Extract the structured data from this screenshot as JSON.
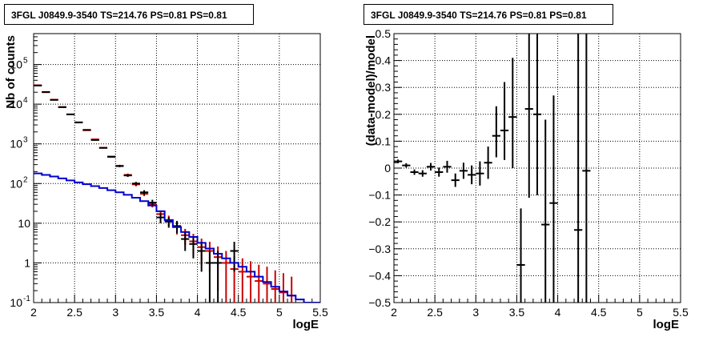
{
  "chart_data": [
    {
      "type": "histogram",
      "title": "3FGL J0849.9-3540 TS=214.76 PS=0.81 PS=0.81",
      "xlabel": "logE",
      "ylabel": "Nb of counts",
      "xlim": [
        2,
        5.5
      ],
      "ylim": [
        0.1,
        600000
      ],
      "yscale": "log",
      "grid": true,
      "x_ticks": [
        "2",
        "2.5",
        "3",
        "3.5",
        "4",
        "4.5",
        "5",
        "5.5"
      ],
      "y_ticks": [
        "10^-1",
        "1",
        "10",
        "10^2",
        "10^3",
        "10^4",
        "10^5"
      ],
      "series": [
        {
          "color": "#cc0000",
          "style": "points_with_errors",
          "points": [
            {
              "x": 2.05,
              "y": 30000,
              "lo": 29800,
              "hi": 30200
            },
            {
              "x": 2.15,
              "y": 20000,
              "lo": 19850,
              "hi": 20150
            },
            {
              "x": 2.25,
              "y": 13000,
              "lo": 12880,
              "hi": 13120
            },
            {
              "x": 2.35,
              "y": 8500,
              "lo": 8400,
              "hi": 8600
            },
            {
              "x": 2.45,
              "y": 5500,
              "lo": 5420,
              "hi": 5580
            },
            {
              "x": 2.55,
              "y": 3500,
              "lo": 3440,
              "hi": 3560
            },
            {
              "x": 2.65,
              "y": 2200,
              "lo": 2150,
              "hi": 2250
            },
            {
              "x": 2.75,
              "y": 1300,
              "lo": 1260,
              "hi": 1340
            },
            {
              "x": 2.85,
              "y": 800,
              "lo": 770,
              "hi": 830
            },
            {
              "x": 2.95,
              "y": 480,
              "lo": 458,
              "hi": 502
            },
            {
              "x": 3.05,
              "y": 280,
              "lo": 263,
              "hi": 297
            },
            {
              "x": 3.15,
              "y": 165,
              "lo": 152,
              "hi": 178
            },
            {
              "x": 3.25,
              "y": 95,
              "lo": 85,
              "hi": 105
            },
            {
              "x": 3.35,
              "y": 55,
              "lo": 48,
              "hi": 62
            },
            {
              "x": 3.45,
              "y": 30,
              "lo": 25,
              "hi": 35
            },
            {
              "x": 3.55,
              "y": 17,
              "lo": 13,
              "hi": 21
            },
            {
              "x": 3.65,
              "y": 12,
              "lo": 8.5,
              "hi": 15.5
            },
            {
              "x": 3.75,
              "y": 8,
              "lo": 5.2,
              "hi": 10.8
            },
            {
              "x": 3.85,
              "y": 5,
              "lo": 2.8,
              "hi": 7.2
            },
            {
              "x": 3.95,
              "y": 3.5,
              "lo": 1.6,
              "hi": 5.4
            },
            {
              "x": 4.05,
              "y": 2.5,
              "lo": 0.9,
              "hi": 4.1
            },
            {
              "x": 4.15,
              "y": 2,
              "lo": 0.6,
              "hi": 3.4
            },
            {
              "x": 4.25,
              "y": 1.4,
              "lo": 0.2,
              "hi": 2.6
            },
            {
              "x": 4.35,
              "y": 1,
              "lo": 0.1,
              "hi": 2.0
            },
            {
              "x": 4.45,
              "y": 0.7,
              "lo": 0.1,
              "hi": 1.5
            },
            {
              "x": 4.55,
              "y": 0.6,
              "lo": 0.1,
              "hi": 1.3
            },
            {
              "x": 4.65,
              "y": 0.45,
              "lo": 0.1,
              "hi": 1.1
            },
            {
              "x": 4.75,
              "y": 0.35,
              "lo": 0.1,
              "hi": 0.9
            },
            {
              "x": 4.85,
              "y": 0.3,
              "lo": 0.1,
              "hi": 0.8
            },
            {
              "x": 4.95,
              "y": 0.22,
              "lo": 0.1,
              "hi": 0.65
            },
            {
              "x": 5.05,
              "y": 0.18,
              "lo": 0.1,
              "hi": 0.55
            },
            {
              "x": 5.15,
              "y": 0.15,
              "lo": 0.1,
              "hi": 0.45
            }
          ]
        },
        {
          "color": "#000000",
          "style": "points_with_errors",
          "points": [
            {
              "x": 2.05,
              "y": 29500,
              "lo": 29300,
              "hi": 29700
            },
            {
              "x": 2.15,
              "y": 20300,
              "lo": 20150,
              "hi": 20450
            },
            {
              "x": 2.25,
              "y": 12800,
              "lo": 12680,
              "hi": 12920
            },
            {
              "x": 2.35,
              "y": 8400,
              "lo": 8300,
              "hi": 8500
            },
            {
              "x": 2.45,
              "y": 5550,
              "lo": 5470,
              "hi": 5630
            },
            {
              "x": 2.55,
              "y": 3450,
              "lo": 3390,
              "hi": 3510
            },
            {
              "x": 2.65,
              "y": 2250,
              "lo": 2200,
              "hi": 2300
            },
            {
              "x": 2.75,
              "y": 1250,
              "lo": 1210,
              "hi": 1290
            },
            {
              "x": 2.85,
              "y": 790,
              "lo": 760,
              "hi": 820
            },
            {
              "x": 2.95,
              "y": 470,
              "lo": 448,
              "hi": 492
            },
            {
              "x": 3.05,
              "y": 275,
              "lo": 258,
              "hi": 292
            },
            {
              "x": 3.15,
              "y": 160,
              "lo": 147,
              "hi": 173
            },
            {
              "x": 3.25,
              "y": 100,
              "lo": 90,
              "hi": 110
            },
            {
              "x": 3.35,
              "y": 60,
              "lo": 52,
              "hi": 68
            },
            {
              "x": 3.45,
              "y": 33,
              "lo": 27,
              "hi": 39
            },
            {
              "x": 3.55,
              "y": 14,
              "lo": 10,
              "hi": 18
            },
            {
              "x": 3.65,
              "y": 11,
              "lo": 7.7,
              "hi": 14.3
            },
            {
              "x": 3.75,
              "y": 8.5,
              "lo": 5.6,
              "hi": 11.4
            },
            {
              "x": 3.85,
              "y": 4,
              "lo": 2.0,
              "hi": 6.0
            },
            {
              "x": 3.95,
              "y": 3,
              "lo": 1.3,
              "hi": 4.7
            },
            {
              "x": 4.05,
              "y": 2,
              "lo": 0.6,
              "hi": 3.4
            },
            {
              "x": 4.15,
              "y": 1,
              "lo": 0.1,
              "hi": 2.0
            },
            {
              "x": 4.25,
              "y": 1,
              "lo": 0.1,
              "hi": 2.0
            },
            {
              "x": 4.45,
              "y": 2,
              "lo": 0.6,
              "hi": 3.4
            }
          ]
        },
        {
          "color": "#0000cc",
          "style": "step",
          "edges": [
            2.0,
            2.1,
            2.2,
            2.3,
            2.4,
            2.5,
            2.6,
            2.7,
            2.8,
            2.9,
            3.0,
            3.1,
            3.2,
            3.3,
            3.4,
            3.5,
            3.6,
            3.7,
            3.8,
            3.9,
            4.0,
            4.1,
            4.2,
            4.3,
            4.4,
            4.5,
            4.6,
            4.7,
            4.8,
            4.9,
            5.0,
            5.1,
            5.2,
            5.3,
            5.4,
            5.5
          ],
          "values": [
            180,
            165,
            150,
            135,
            120,
            107,
            96,
            86,
            77,
            68,
            60,
            52,
            44,
            36,
            28,
            20,
            12,
            8,
            6,
            4.5,
            3.2,
            2.3,
            1.7,
            1.3,
            1.0,
            0.8,
            0.6,
            0.45,
            0.33,
            0.25,
            0.19,
            0.15,
            0.12,
            0.1,
            0.1
          ]
        }
      ]
    },
    {
      "type": "scatter",
      "title": "3FGL J0849.9-3540 TS=214.76 PS=0.81 PS=0.81",
      "xlabel": "logE",
      "ylabel": "(data-model)/model",
      "xlim": [
        2,
        5.5
      ],
      "ylim": [
        -0.5,
        0.5
      ],
      "grid": true,
      "x_ticks": [
        "2",
        "2.5",
        "3",
        "3.5",
        "4",
        "4.5",
        "5",
        "5.5"
      ],
      "y_ticks": [
        "-0.5",
        "-0.4",
        "-0.3",
        "-0.2",
        "-0.1",
        "0",
        "0.1",
        "0.2",
        "0.3",
        "0.4",
        "0.5"
      ],
      "series": [
        {
          "color": "#000000",
          "style": "points_with_errors",
          "points": [
            {
              "x": 2.05,
              "y": 0.025,
              "lo": 0.018,
              "hi": 0.032
            },
            {
              "x": 2.15,
              "y": 0.01,
              "lo": 0.002,
              "hi": 0.018
            },
            {
              "x": 2.25,
              "y": -0.015,
              "lo": -0.025,
              "hi": -0.005
            },
            {
              "x": 2.35,
              "y": -0.02,
              "lo": -0.032,
              "hi": -0.008
            },
            {
              "x": 2.45,
              "y": 0.005,
              "lo": -0.009,
              "hi": 0.019
            },
            {
              "x": 2.55,
              "y": -0.015,
              "lo": -0.032,
              "hi": 0.002
            },
            {
              "x": 2.65,
              "y": 0.005,
              "lo": -0.017,
              "hi": 0.027
            },
            {
              "x": 2.75,
              "y": -0.045,
              "lo": -0.07,
              "hi": -0.02
            },
            {
              "x": 2.85,
              "y": -0.01,
              "lo": -0.04,
              "hi": 0.02
            },
            {
              "x": 2.95,
              "y": -0.025,
              "lo": -0.06,
              "hi": 0.01
            },
            {
              "x": 3.05,
              "y": -0.02,
              "lo": -0.065,
              "hi": 0.025
            },
            {
              "x": 3.15,
              "y": 0.02,
              "lo": -0.04,
              "hi": 0.08
            },
            {
              "x": 3.25,
              "y": 0.12,
              "lo": 0.04,
              "hi": 0.23
            },
            {
              "x": 3.35,
              "y": 0.14,
              "lo": 0.03,
              "hi": 0.32
            },
            {
              "x": 3.45,
              "y": 0.19,
              "lo": 0.0,
              "hi": 0.41
            },
            {
              "x": 3.55,
              "y": -0.36,
              "lo": -0.5,
              "hi": -0.15
            },
            {
              "x": 3.65,
              "y": 0.22,
              "lo": -0.11,
              "hi": 0.5
            },
            {
              "x": 3.75,
              "y": 0.2,
              "lo": -0.1,
              "hi": 0.5
            },
            {
              "x": 3.85,
              "y": -0.21,
              "lo": -0.5,
              "hi": 0.18
            },
            {
              "x": 3.95,
              "y": -0.13,
              "lo": -0.5,
              "hi": 0.27
            },
            {
              "x": 4.25,
              "y": -0.23,
              "lo": -0.5,
              "hi": 0.5
            },
            {
              "x": 4.35,
              "y": -0.01,
              "lo": -0.5,
              "hi": 0.5
            }
          ]
        }
      ]
    }
  ]
}
